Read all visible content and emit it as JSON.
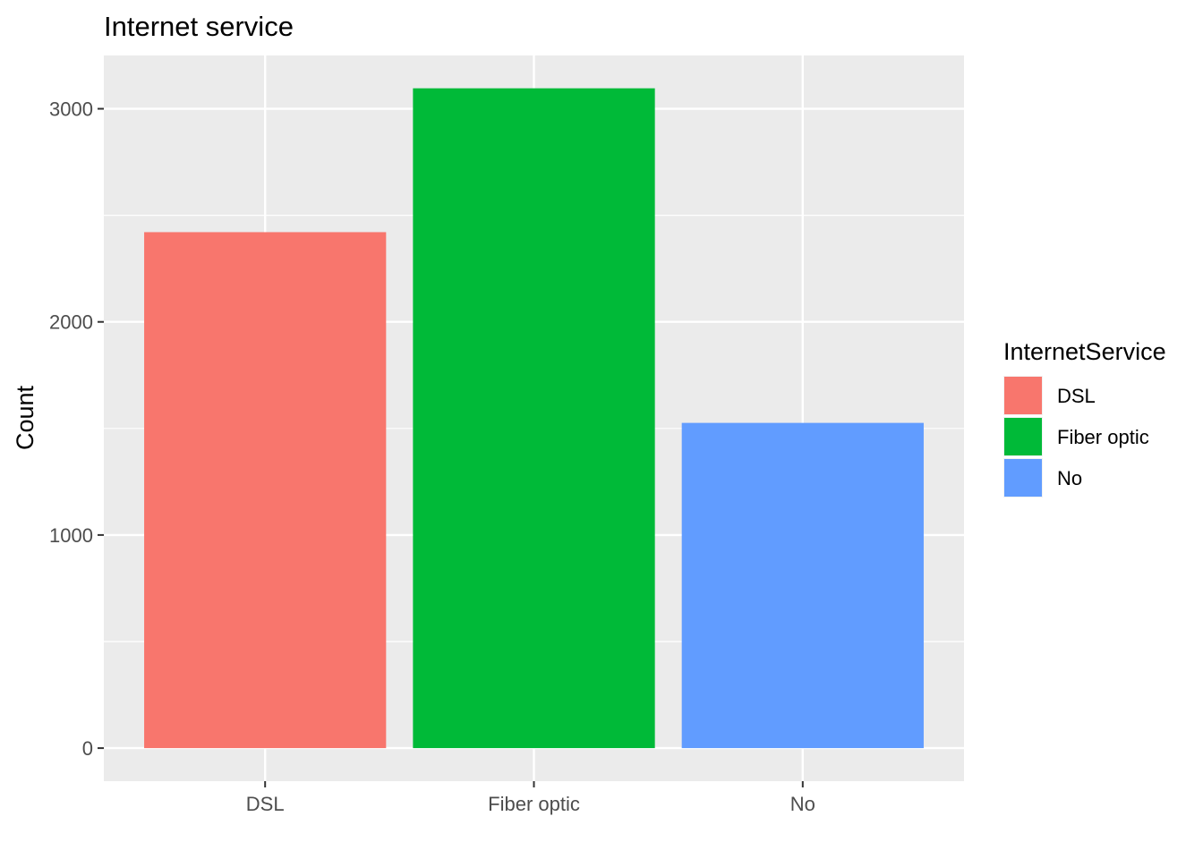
{
  "chart_data": {
    "type": "bar",
    "title": "Internet service",
    "xlabel": "",
    "ylabel": "Count",
    "categories": [
      "DSL",
      "Fiber optic",
      "No"
    ],
    "values": [
      2421,
      3096,
      1526
    ],
    "colors": [
      "#F8766D",
      "#00BA38",
      "#619CFF"
    ],
    "ylim": [
      -155,
      3250
    ],
    "yticks": [
      0,
      1000,
      2000,
      3000
    ],
    "grid": true,
    "panel_background": "#EBEBEB",
    "legend": {
      "title": "InternetService",
      "position": "right",
      "entries": [
        "DSL",
        "Fiber optic",
        "No"
      ]
    }
  }
}
